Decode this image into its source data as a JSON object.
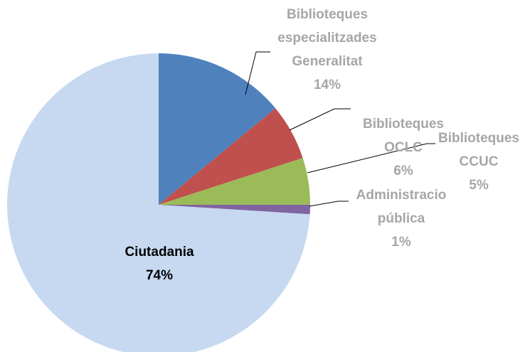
{
  "chart_data": {
    "type": "pie",
    "categories": [
      "Biblioteques especialitzades Generalitat",
      "Biblioteques OCLC",
      "Biblioteques CCUC",
      "Administracio pública",
      "Ciutadania"
    ],
    "values": [
      14,
      6,
      5,
      1,
      74
    ],
    "value_labels": [
      "14%",
      "6%",
      "5%",
      "1%",
      "74%"
    ],
    "colors": [
      "#4f81bd",
      "#c0504d",
      "#9bbb59",
      "#8064a2",
      "#c6d9f1"
    ]
  }
}
